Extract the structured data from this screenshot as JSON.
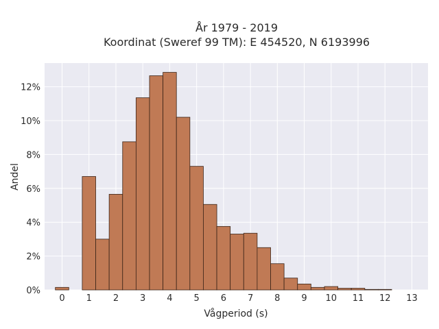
{
  "chart_data": {
    "type": "bar",
    "title_line1": "År 1979 - 2019",
    "title_line2": "Koordinat (Sweref 99 TM): E 454520, N 6193996",
    "xlabel": "Vågperiod (s)",
    "ylabel": "Andel",
    "bin_width": 0.5,
    "xlim": [
      -0.65,
      13.6
    ],
    "ylim": [
      0,
      13.4
    ],
    "grid": true,
    "colors": {
      "background": "#eaeaf2",
      "grid": "#ffffff",
      "bar_fill": "#c07a55",
      "bar_edge": "#3a2418"
    },
    "x_ticks": [
      {
        "value": 0,
        "label": "0"
      },
      {
        "value": 1,
        "label": "1"
      },
      {
        "value": 2,
        "label": "2"
      },
      {
        "value": 3,
        "label": "3"
      },
      {
        "value": 4,
        "label": "4"
      },
      {
        "value": 5,
        "label": "5"
      },
      {
        "value": 6,
        "label": "6"
      },
      {
        "value": 7,
        "label": "7"
      },
      {
        "value": 8,
        "label": "8"
      },
      {
        "value": 9,
        "label": "9"
      },
      {
        "value": 10,
        "label": "10"
      },
      {
        "value": 11,
        "label": "11"
      },
      {
        "value": 12,
        "label": "12"
      },
      {
        "value": 13,
        "label": "13"
      }
    ],
    "y_ticks": [
      {
        "value": 0,
        "label": "0%"
      },
      {
        "value": 2,
        "label": "2%"
      },
      {
        "value": 4,
        "label": "4%"
      },
      {
        "value": 6,
        "label": "6%"
      },
      {
        "value": 8,
        "label": "8%"
      },
      {
        "value": 10,
        "label": "10%"
      },
      {
        "value": 12,
        "label": "12%"
      }
    ],
    "bins": [
      {
        "x": 0.0,
        "value": 0.15
      },
      {
        "x": 1.0,
        "value": 6.7
      },
      {
        "x": 1.5,
        "value": 3.0
      },
      {
        "x": 2.0,
        "value": 5.65
      },
      {
        "x": 2.5,
        "value": 8.75
      },
      {
        "x": 3.0,
        "value": 11.35
      },
      {
        "x": 3.5,
        "value": 12.65
      },
      {
        "x": 4.0,
        "value": 12.85
      },
      {
        "x": 4.5,
        "value": 10.2
      },
      {
        "x": 5.0,
        "value": 7.3
      },
      {
        "x": 5.5,
        "value": 5.05
      },
      {
        "x": 6.0,
        "value": 3.75
      },
      {
        "x": 6.5,
        "value": 3.3
      },
      {
        "x": 7.0,
        "value": 3.35
      },
      {
        "x": 7.5,
        "value": 2.5
      },
      {
        "x": 8.0,
        "value": 1.55
      },
      {
        "x": 8.5,
        "value": 0.7
      },
      {
        "x": 9.0,
        "value": 0.35
      },
      {
        "x": 9.5,
        "value": 0.15
      },
      {
        "x": 10.0,
        "value": 0.2
      },
      {
        "x": 10.5,
        "value": 0.1
      },
      {
        "x": 11.0,
        "value": 0.1
      },
      {
        "x": 11.5,
        "value": 0.03
      },
      {
        "x": 12.0,
        "value": 0.03
      }
    ]
  }
}
